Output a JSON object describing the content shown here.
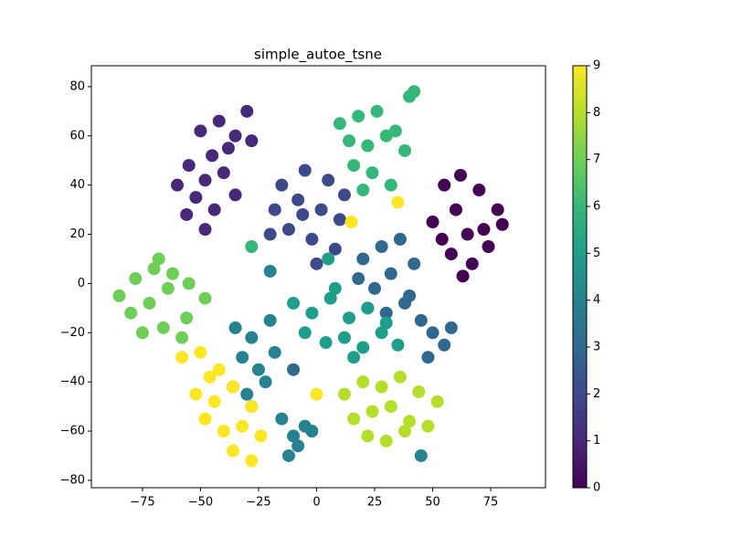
{
  "chart_data": {
    "type": "scatter",
    "title": "simple_autoe_tsne",
    "x": [
      55,
      62,
      70,
      78,
      60,
      50,
      65,
      72,
      58,
      80,
      67,
      54,
      63,
      74,
      -50,
      -42,
      -35,
      -28,
      -45,
      -38,
      -30,
      -55,
      -48,
      -40,
      -60,
      -52,
      -44,
      -35,
      -48,
      -56,
      -15,
      -5,
      5,
      12,
      -18,
      -8,
      2,
      10,
      -12,
      -2,
      8,
      -20,
      0,
      -6,
      20,
      28,
      36,
      42,
      18,
      25,
      32,
      40,
      22,
      30,
      38,
      45,
      50,
      55,
      48,
      58,
      -35,
      -28,
      -20,
      -32,
      -25,
      -18,
      -36,
      -30,
      -22,
      -28,
      -15,
      -10,
      -5,
      -12,
      -8,
      -2,
      -10,
      -2,
      6,
      14,
      22,
      30,
      -5,
      4,
      12,
      20,
      28,
      35,
      16,
      8,
      10,
      18,
      26,
      34,
      40,
      14,
      22,
      30,
      38,
      16,
      24,
      32,
      42,
      20,
      -85,
      -78,
      -70,
      -62,
      -55,
      -48,
      -80,
      -72,
      -64,
      -56,
      -75,
      -66,
      -58,
      -68,
      12,
      20,
      28,
      36,
      44,
      52,
      16,
      24,
      32,
      40,
      48,
      22,
      30,
      38,
      -58,
      -50,
      -42,
      -52,
      -44,
      -36,
      -28,
      -48,
      -40,
      -32,
      -24,
      -36,
      -28,
      -46,
      5,
      -10,
      15,
      -28,
      0,
      45,
      -20,
      35
    ],
    "y": [
      40,
      44,
      38,
      30,
      30,
      25,
      20,
      22,
      12,
      24,
      8,
      18,
      3,
      15,
      62,
      66,
      60,
      58,
      52,
      55,
      70,
      48,
      42,
      45,
      40,
      35,
      30,
      36,
      22,
      28,
      40,
      46,
      42,
      36,
      30,
      34,
      30,
      26,
      22,
      18,
      14,
      20,
      8,
      28,
      10,
      15,
      18,
      8,
      2,
      -2,
      4,
      -5,
      -10,
      -12,
      -8,
      -15,
      -20,
      -25,
      -30,
      -18,
      -18,
      -22,
      -15,
      -30,
      -35,
      -28,
      -42,
      -45,
      -40,
      -50,
      -55,
      -62,
      -58,
      -70,
      -66,
      -60,
      -8,
      -12,
      -6,
      -14,
      -10,
      -16,
      -20,
      -24,
      -22,
      -26,
      -20,
      -25,
      -30,
      -2,
      65,
      68,
      70,
      62,
      76,
      58,
      56,
      60,
      54,
      48,
      45,
      40,
      78,
      38,
      -5,
      2,
      6,
      4,
      0,
      -6,
      -12,
      -8,
      -2,
      -14,
      -20,
      -18,
      -22,
      10,
      -45,
      -40,
      -42,
      -38,
      -44,
      -48,
      -55,
      -52,
      -50,
      -56,
      -58,
      -62,
      -64,
      -60,
      -30,
      -28,
      -35,
      -45,
      -48,
      -42,
      -50,
      -55,
      -60,
      -58,
      -62,
      -68,
      -72,
      -38,
      10,
      -35,
      25,
      15,
      -45,
      -70,
      5,
      33
    ],
    "c": [
      0,
      0,
      0,
      0,
      0,
      0,
      0,
      0,
      0,
      0,
      0,
      0,
      0,
      0,
      1,
      1,
      1,
      1,
      1,
      1,
      1,
      1,
      1,
      1,
      1,
      1,
      1,
      1,
      1,
      1,
      2,
      2,
      2,
      2,
      2,
      2,
      2,
      2,
      2,
      2,
      2,
      2,
      2,
      2,
      3,
      3,
      3,
      3,
      3,
      3,
      3,
      3,
      3,
      3,
      3,
      3,
      3,
      3,
      3,
      3,
      4,
      4,
      4,
      4,
      4,
      4,
      4,
      4,
      4,
      4,
      4,
      4,
      4,
      4,
      4,
      4,
      5,
      5,
      5,
      5,
      5,
      5,
      5,
      5,
      5,
      5,
      5,
      5,
      5,
      5,
      6,
      6,
      6,
      6,
      6,
      6,
      6,
      6,
      6,
      6,
      6,
      6,
      6,
      6,
      7,
      7,
      7,
      7,
      7,
      7,
      7,
      7,
      7,
      7,
      7,
      7,
      7,
      7,
      8,
      8,
      8,
      8,
      8,
      8,
      8,
      8,
      8,
      8,
      8,
      8,
      8,
      8,
      9,
      9,
      9,
      9,
      9,
      9,
      9,
      9,
      9,
      9,
      9,
      9,
      9,
      9,
      5,
      3,
      9,
      6,
      9,
      4,
      4,
      9
    ],
    "colormap": "viridis",
    "xlim": [
      -97,
      98.6
    ],
    "ylim": [
      -83,
      88.5
    ],
    "xticks": [
      {
        "value": -75,
        "label": "−75"
      },
      {
        "value": -50,
        "label": "−50"
      },
      {
        "value": -25,
        "label": "−25"
      },
      0,
      25,
      50,
      75
    ],
    "yticks": [
      {
        "value": -80,
        "label": "−80"
      },
      {
        "value": -60,
        "label": "−60"
      },
      {
        "value": -40,
        "label": "−40"
      },
      {
        "value": -20,
        "label": "−20"
      },
      0,
      20,
      40,
      60,
      80
    ],
    "clim": [
      0,
      9
    ],
    "cticks": [
      0,
      1,
      2,
      3,
      4,
      5,
      6,
      7,
      8,
      9
    ],
    "grid": false
  }
}
